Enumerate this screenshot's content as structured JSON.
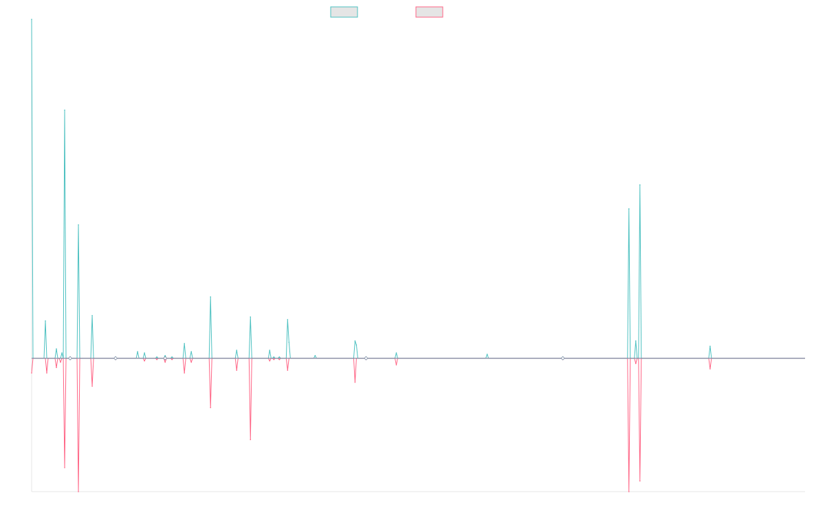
{
  "chart_data": {
    "type": "line",
    "title": "",
    "xlabel": "",
    "ylabel": "",
    "grid": false,
    "legend_placement": "top-center",
    "legend_text_visible": false,
    "colors": {
      "series_a": "#4BC0C0",
      "series_b": "#FF6384",
      "legend_fill": "#E5E5E5",
      "baseline": "#7F8FA6",
      "axis": "#E6E6E6"
    },
    "ylim": [
      -100,
      250
    ],
    "x": [
      0,
      1,
      2,
      3,
      4,
      5,
      6,
      7,
      8,
      9,
      10,
      11,
      12,
      13,
      14,
      15,
      16,
      17,
      18,
      19,
      20,
      21,
      22,
      23,
      24,
      25,
      26,
      27,
      28,
      29,
      30,
      31,
      32,
      33,
      34,
      35,
      36,
      37,
      38,
      39,
      40,
      41,
      42,
      43,
      44,
      45,
      46,
      47,
      48,
      49,
      50,
      51,
      52,
      53,
      54,
      55,
      56,
      57,
      58,
      59,
      60,
      61,
      62,
      63,
      64,
      65,
      66,
      67,
      68,
      69,
      70,
      71,
      72,
      73,
      74,
      75,
      76,
      77,
      78,
      79,
      80,
      81,
      82,
      83,
      84,
      85,
      86,
      87,
      88,
      89,
      90,
      91,
      92,
      93,
      94,
      95,
      96,
      97,
      98,
      99,
      100,
      101,
      102,
      103,
      104,
      105,
      106,
      107,
      108,
      109,
      110,
      111,
      112,
      113,
      114,
      115,
      116,
      117,
      118,
      119,
      120,
      121,
      122,
      123,
      124,
      125,
      126,
      127,
      128,
      129,
      130,
      131,
      132,
      133,
      134,
      135,
      136,
      137,
      138,
      139,
      140,
      141,
      142,
      143,
      144,
      145,
      146,
      147,
      148,
      149,
      150,
      151,
      152,
      153,
      154,
      155,
      156,
      157,
      158,
      159,
      160,
      161,
      162,
      163,
      164,
      165,
      166,
      167,
      168,
      169,
      170,
      171,
      172,
      173,
      174,
      175,
      176,
      177,
      178,
      179,
      180,
      181,
      182,
      183,
      184,
      185,
      186,
      187,
      188,
      189,
      190,
      191,
      192,
      193,
      194,
      195,
      196,
      197,
      198,
      199,
      200,
      201,
      202,
      203,
      204,
      205,
      206,
      207,
      208,
      209,
      210,
      211,
      212,
      213,
      214,
      215,
      216,
      217,
      218,
      219,
      220,
      221,
      222,
      223,
      224,
      225,
      226,
      227,
      228,
      229,
      230,
      231,
      232,
      233,
      234,
      235,
      236,
      237,
      238,
      239,
      240,
      241,
      242,
      243,
      244,
      245,
      246,
      247,
      248,
      249,
      250,
      251,
      252,
      253,
      254,
      255,
      256,
      257,
      258,
      259,
      260,
      261,
      262,
      263,
      264,
      265,
      266,
      267,
      268,
      269,
      270,
      271,
      272,
      273,
      274,
      275,
      276,
      277,
      278,
      279,
      280,
      281,
      282,
      283,
      284,
      285,
      286,
      287,
      288,
      289,
      290,
      291,
      292,
      293,
      294,
      295,
      296,
      297,
      298,
      299,
      300,
      301,
      302,
      303,
      304,
      305,
      306,
      307,
      308,
      309,
      310,
      311,
      312,
      313,
      314,
      315,
      316,
      317,
      318,
      319,
      320,
      321,
      322,
      323,
      324,
      325,
      326,
      327,
      328,
      329,
      330,
      331,
      332,
      333,
      334,
      335,
      336,
      337,
      338,
      339,
      340,
      341,
      342,
      343,
      344,
      345,
      346,
      347,
      348,
      349,
      350,
      351,
      352,
      353,
      354,
      355,
      356,
      357,
      358,
      359,
      360,
      361,
      362,
      363,
      364,
      365,
      366,
      367,
      368,
      369,
      370,
      371,
      372,
      373,
      374,
      375,
      376,
      377,
      378,
      379,
      380,
      381,
      382,
      383,
      384,
      385,
      386,
      387,
      388,
      389,
      390,
      391,
      392,
      393,
      394,
      395,
      396,
      397,
      398,
      399,
      400,
      401,
      402,
      403,
      404,
      405,
      406,
      407,
      408,
      409,
      410,
      411,
      412,
      413,
      414,
      415,
      416,
      417,
      418,
      419,
      420,
      421,
      422,
      423,
      424,
      425,
      426,
      427,
      428,
      429,
      430,
      431,
      432,
      433,
      434,
      435,
      436,
      437,
      438,
      439,
      440,
      441,
      442,
      443,
      444,
      445,
      446,
      447,
      448,
      449,
      450,
      451,
      452,
      453,
      454,
      455,
      456,
      457,
      458,
      459,
      460,
      461,
      462,
      463,
      464,
      465,
      466,
      467,
      468,
      469,
      470,
      471,
      472,
      473,
      474,
      475,
      476,
      477,
      478,
      479,
      480,
      481,
      482,
      483,
      484,
      485,
      486,
      487,
      488,
      489,
      490,
      491,
      492,
      493,
      494,
      495,
      496,
      497,
      498,
      499,
      500,
      501,
      502,
      503,
      504,
      505,
      506,
      507,
      508,
      509,
      510,
      511,
      512,
      513,
      514,
      515,
      516,
      517,
      518,
      519,
      520,
      521,
      522,
      523,
      524,
      525,
      526,
      527,
      528,
      529,
      530,
      531,
      532,
      533,
      534,
      535,
      536,
      537,
      538,
      539,
      540,
      541,
      542,
      543,
      544,
      545,
      546,
      547,
      548,
      549,
      550,
      551,
      552,
      553,
      554,
      555,
      556,
      557,
      558,
      559,
      560,
      561,
      562
    ],
    "series": [
      {
        "legend_label": "",
        "peaks": [
          {
            "x": 0,
            "y": 254
          },
          {
            "x": 10,
            "y": 28
          },
          {
            "x": 18,
            "y": 7
          },
          {
            "x": 22,
            "y": 4
          },
          {
            "x": 24,
            "y": 186
          },
          {
            "x": 28,
            "y": 1
          },
          {
            "x": 34,
            "y": 100
          },
          {
            "x": 44,
            "y": 32
          },
          {
            "x": 61,
            "y": 1
          },
          {
            "x": 77,
            "y": 5
          },
          {
            "x": 82,
            "y": 4
          },
          {
            "x": 91,
            "y": 1
          },
          {
            "x": 97,
            "y": 2
          },
          {
            "x": 102,
            "y": 1
          },
          {
            "x": 111,
            "y": 11
          },
          {
            "x": 116,
            "y": 5
          },
          {
            "x": 130,
            "y": 46
          },
          {
            "x": 149,
            "y": 6
          },
          {
            "x": 159,
            "y": 31
          },
          {
            "x": 173,
            "y": 6
          },
          {
            "x": 176,
            "y": 1
          },
          {
            "x": 180,
            "y": 1
          },
          {
            "x": 186,
            "y": 29
          },
          {
            "x": 187,
            "y": 12
          },
          {
            "x": 206,
            "y": 2
          },
          {
            "x": 235,
            "y": 13
          },
          {
            "x": 236,
            "y": 10
          },
          {
            "x": 243,
            "y": 1
          },
          {
            "x": 265,
            "y": 4
          },
          {
            "x": 331,
            "y": 3
          },
          {
            "x": 386,
            "y": 1
          },
          {
            "x": 434,
            "y": 112
          },
          {
            "x": 439,
            "y": 13
          },
          {
            "x": 442,
            "y": 130
          },
          {
            "x": 493,
            "y": 9
          }
        ]
      },
      {
        "legend_label": "",
        "peaks": [
          {
            "x": 0,
            "y": -11
          },
          {
            "x": 11,
            "y": -11
          },
          {
            "x": 18,
            "y": -7
          },
          {
            "x": 21,
            "y": -3
          },
          {
            "x": 24,
            "y": -82
          },
          {
            "x": 28,
            "y": -1
          },
          {
            "x": 34,
            "y": -100
          },
          {
            "x": 44,
            "y": -21
          },
          {
            "x": 61,
            "y": -1
          },
          {
            "x": 82,
            "y": -2
          },
          {
            "x": 91,
            "y": -1
          },
          {
            "x": 97,
            "y": -3
          },
          {
            "x": 102,
            "y": -1
          },
          {
            "x": 111,
            "y": -11
          },
          {
            "x": 116,
            "y": -3
          },
          {
            "x": 130,
            "y": -37
          },
          {
            "x": 149,
            "y": -9
          },
          {
            "x": 159,
            "y": -61
          },
          {
            "x": 173,
            "y": -2
          },
          {
            "x": 176,
            "y": -1
          },
          {
            "x": 180,
            "y": -1
          },
          {
            "x": 186,
            "y": -9
          },
          {
            "x": 235,
            "y": -18
          },
          {
            "x": 243,
            "y": -1
          },
          {
            "x": 265,
            "y": -5
          },
          {
            "x": 386,
            "y": -1
          },
          {
            "x": 434,
            "y": -100
          },
          {
            "x": 439,
            "y": -4
          },
          {
            "x": 442,
            "y": -92
          },
          {
            "x": 493,
            "y": -8
          }
        ]
      }
    ]
  }
}
